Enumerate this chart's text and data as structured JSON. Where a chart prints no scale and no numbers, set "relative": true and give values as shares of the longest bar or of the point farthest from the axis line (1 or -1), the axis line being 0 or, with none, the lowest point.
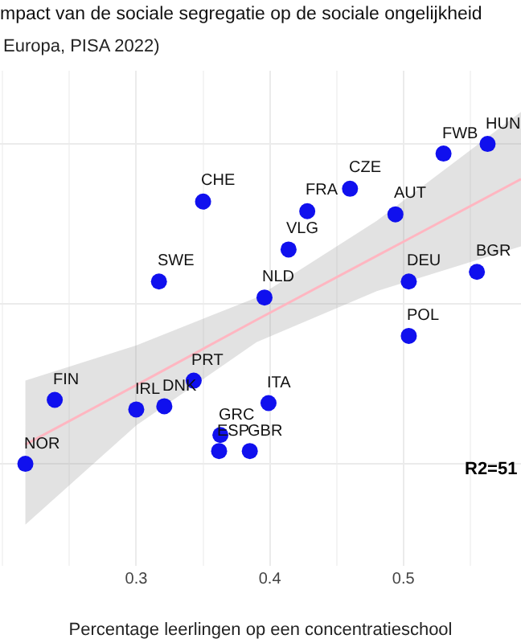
{
  "chart_data": {
    "type": "scatter",
    "title": "mpact van de sociale segregatie op de sociale ongelijkheid",
    "subtitle": "Europa, PISA 2022)",
    "xlabel": "Percentage leerlingen op een concentratieschool",
    "relative": true,
    "grid": true,
    "xlim": [
      0.198,
      0.588
    ],
    "xticks": [
      0.3,
      0.4,
      0.5
    ],
    "series": [
      {
        "marker": "circle",
        "color": "#1010ee",
        "x": [
          0.563,
          0.53,
          0.46,
          0.35,
          0.428,
          0.494,
          0.414,
          0.317,
          0.396,
          0.504,
          0.555,
          0.504,
          0.343,
          0.239,
          0.399,
          0.3,
          0.321,
          0.363,
          0.362,
          0.385,
          0.217
        ],
        "values": [
          1,
          0.97,
          0.86,
          0.82,
          0.79,
          0.78,
          0.67,
          0.57,
          0.52,
          0.57,
          0.6,
          0.4,
          0.26,
          0.2,
          0.19,
          0.17,
          0.18,
          0.09,
          0.04,
          0.04,
          0
        ]
      },
      {
        "type": "line",
        "color": "#ffb6c1",
        "x": [
          0.217,
          0.3,
          0.39,
          0.48,
          0.588
        ],
        "values": [
          0.06,
          0.246,
          0.45,
          0.65,
          0.89
        ],
        "lower": [
          -0.19,
          0.12,
          0.38,
          0.54,
          0.68
        ],
        "upper": [
          0.26,
          0.37,
          0.52,
          0.76,
          1.1
        ]
      }
    ],
    "annotations": [
      {
        "text": "HUN",
        "x": 0.563,
        "y": 1
      },
      {
        "text": "FWB",
        "x": 0.53,
        "y": 0.97
      },
      {
        "text": "CZE",
        "x": 0.46,
        "y": 0.86
      },
      {
        "text": "CHE",
        "x": 0.35,
        "y": 0.82
      },
      {
        "text": "FRA",
        "x": 0.428,
        "y": 0.79
      },
      {
        "text": "AUT",
        "x": 0.494,
        "y": 0.78
      },
      {
        "text": "VLG",
        "x": 0.414,
        "y": 0.67
      },
      {
        "text": "SWE",
        "x": 0.317,
        "y": 0.57
      },
      {
        "text": "NLD",
        "x": 0.396,
        "y": 0.52
      },
      {
        "text": "DEU",
        "x": 0.504,
        "y": 0.57
      },
      {
        "text": "BGR",
        "x": 0.555,
        "y": 0.6
      },
      {
        "text": "POL",
        "x": 0.504,
        "y": 0.4
      },
      {
        "text": "PRT",
        "x": 0.343,
        "y": 0.26
      },
      {
        "text": "FIN",
        "x": 0.239,
        "y": 0.2
      },
      {
        "text": "ITA",
        "x": 0.399,
        "y": 0.19
      },
      {
        "text": "IRL",
        "x": 0.3,
        "y": 0.17
      },
      {
        "text": "DNK",
        "x": 0.321,
        "y": 0.18
      },
      {
        "text": "GRC",
        "x": 0.363,
        "y": 0.09
      },
      {
        "text": "ESP",
        "x": 0.362,
        "y": 0.04
      },
      {
        "text": "GBR",
        "x": 0.385,
        "y": 0.04
      },
      {
        "text": "NOR",
        "x": 0.217,
        "y": 0
      },
      "R2=51"
    ]
  }
}
